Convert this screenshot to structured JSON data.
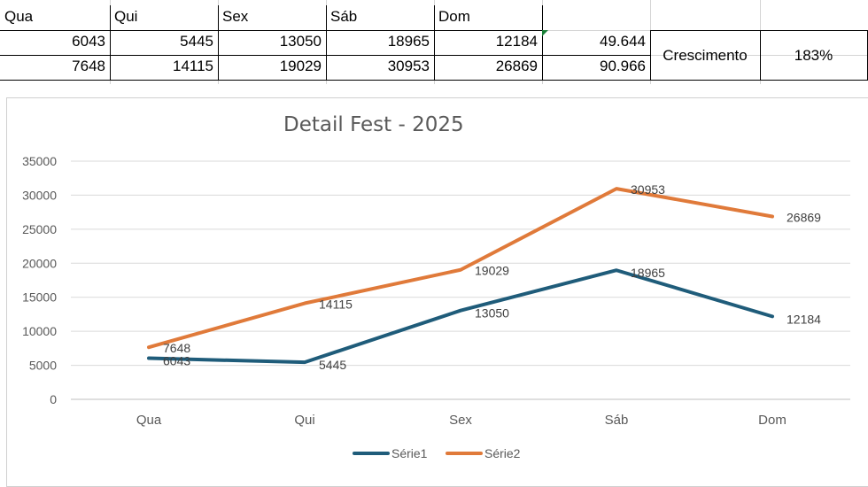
{
  "sheet": {
    "header_row": [
      "Qua",
      "Qui",
      "Sex",
      "Sáb",
      "Dom"
    ],
    "row1": [
      "6043",
      "5445",
      "13050",
      "18965",
      "12184",
      "49.644"
    ],
    "row2": [
      "7648",
      "14115",
      "19029",
      "30953",
      "26869",
      "90.966"
    ],
    "growth_label": "Crescimento",
    "growth_value": "183%"
  },
  "chart_data": {
    "type": "line",
    "title": "Detail Fest - 2025",
    "categories": [
      "Qua",
      "Qui",
      "Sex",
      "Sáb",
      "Dom"
    ],
    "series": [
      {
        "name": "Série1",
        "color": "#1f5c7a",
        "values": [
          6043,
          5445,
          13050,
          18965,
          12184
        ]
      },
      {
        "name": "Série2",
        "color": "#e07a3a",
        "values": [
          7648,
          14115,
          19029,
          30953,
          26869
        ]
      }
    ],
    "ylim": [
      0,
      35000
    ],
    "yticks": [
      0,
      5000,
      10000,
      15000,
      20000,
      25000,
      30000,
      35000
    ],
    "grid": true,
    "legend": "bottom"
  }
}
